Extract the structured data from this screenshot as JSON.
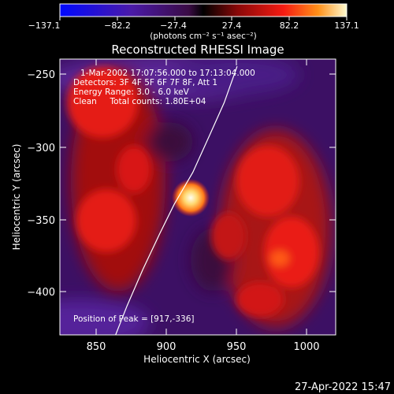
{
  "chart_data": {
    "type": "heatmap",
    "title": "Reconstructed RHESSI Image",
    "xlabel": "Heliocentric X (arcsec)",
    "ylabel": "Heliocentric Y (arcsec)",
    "xlim": [
      825,
      1018
    ],
    "ylim": [
      -430,
      -240
    ],
    "x_ticks": [
      850,
      900,
      950,
      1000
    ],
    "x_tick_labels": [
      "850",
      "900",
      "950",
      "1000"
    ],
    "y_ticks": [
      -250,
      -300,
      -350,
      -400
    ],
    "y_tick_labels": [
      "−250",
      "−300",
      "−350",
      "−400"
    ],
    "colorbar": {
      "min": -137.1,
      "max": 137.1,
      "ticks": [
        -137.1,
        -82.2,
        -27.4,
        27.4,
        82.2,
        137.1
      ],
      "tick_labels": [
        "−137.1",
        "−82.2",
        "−27.4",
        "27.4",
        "82.2",
        "137.1"
      ],
      "unit_label": "(photons cm⁻² s⁻¹ asec⁻²)"
    },
    "peak": {
      "x": 917,
      "y": -336
    },
    "annotations": {
      "time": "1-Mar-2002 17:07:56.000 to 17:13:04.000",
      "detectors": "Detectors: 3F 4F 5F 6F 7F 8F, Att 1",
      "energy": "Energy Range: 3.0 - 6.0 keV",
      "clean": "Clean     Total counts: 1.80E+04",
      "peak_text": "Position of Peak = [917,-336]"
    },
    "limb_points": [
      [
        864,
        -430
      ],
      [
        872,
        -410
      ],
      [
        883,
        -385
      ],
      [
        895,
        -360
      ],
      [
        905,
        -340
      ],
      [
        918,
        -318
      ],
      [
        930,
        -292
      ],
      [
        940,
        -270
      ],
      [
        949,
        -245
      ]
    ],
    "footer_date": "27-Apr-2022 15:47"
  }
}
